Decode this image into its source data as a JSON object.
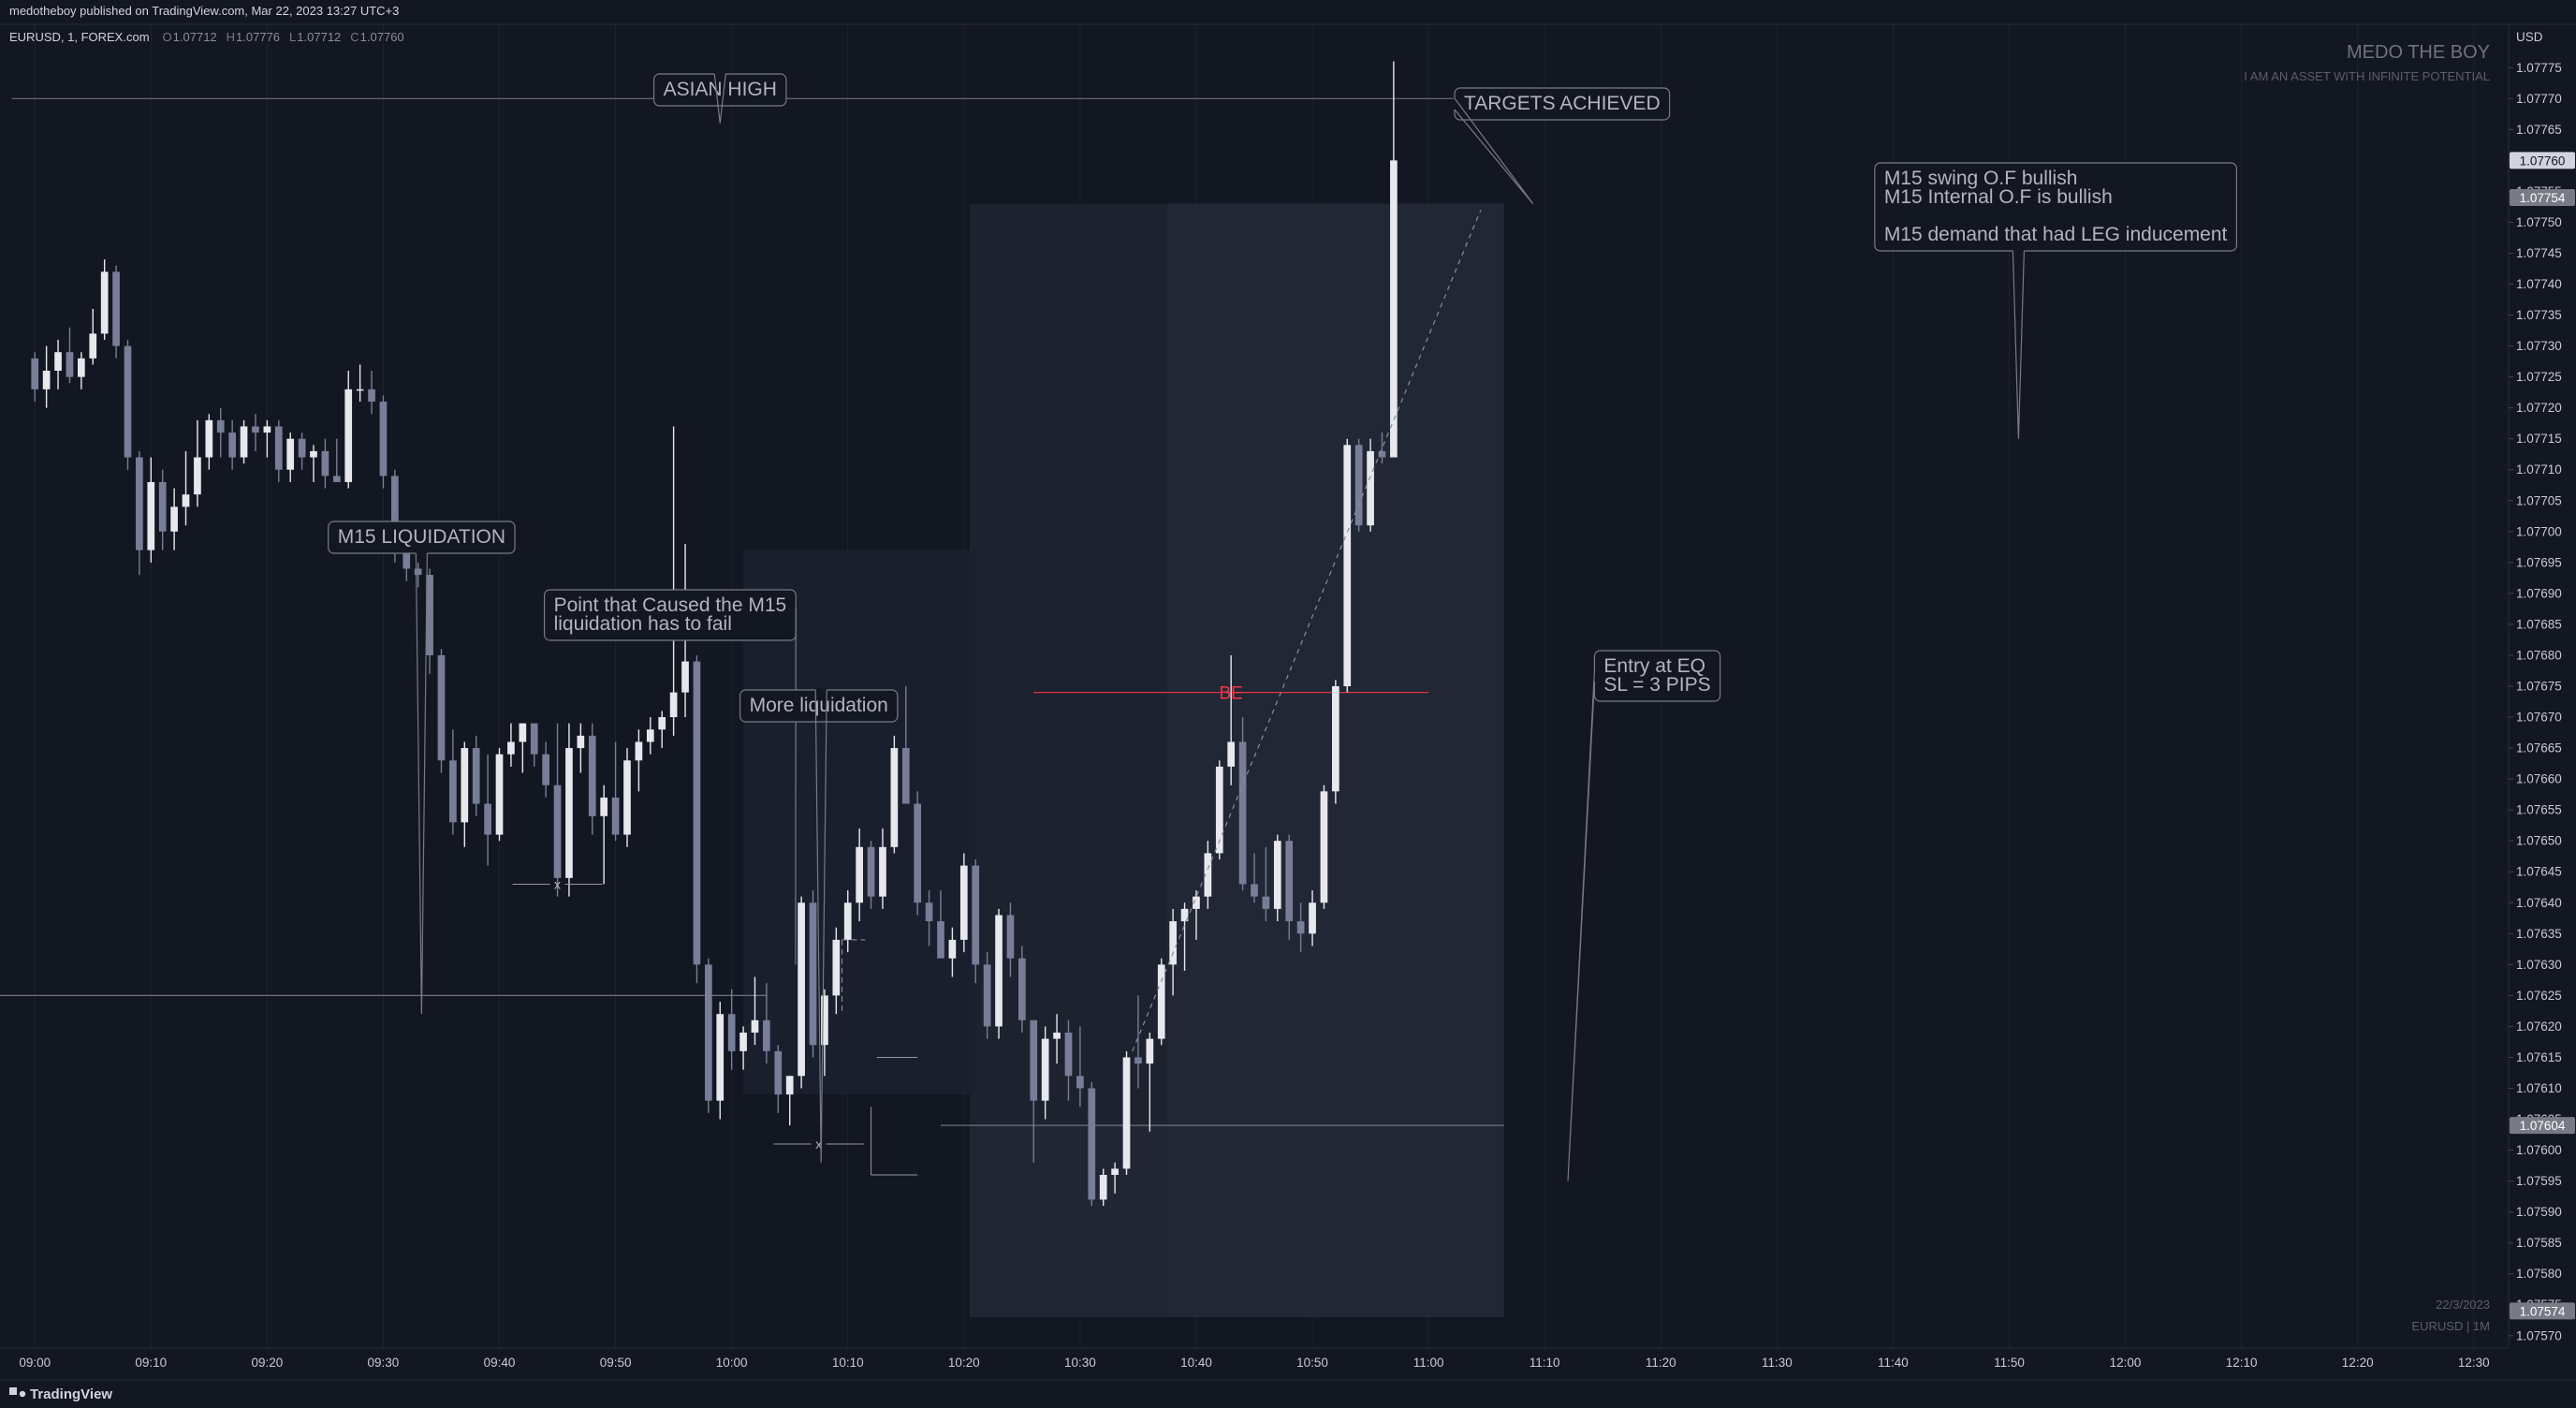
{
  "header": {
    "publisher": "medotheboy published on TradingView.com, Mar 22, 2023 13:27 UTC+3",
    "symbol": "EURUSD, 1, FOREX.com",
    "ohlc": [
      {
        "label": "O",
        "value": "1.07712"
      },
      {
        "label": "H",
        "value": "1.07776"
      },
      {
        "label": "L",
        "value": "1.07712"
      },
      {
        "label": "C",
        "value": "1.07760"
      }
    ]
  },
  "watermark": {
    "title": "MEDO THE BOY",
    "subtitle": "I AM AN ASSET WITH INFINITE POTENTIAL",
    "date": "22/3/2023",
    "symbol_tf": "EURUSD | 1M"
  },
  "footer": {
    "brand": "TradingView"
  },
  "colors": {
    "background": "#131722",
    "candle_up": "#e6e8ee",
    "candle_down": "#787e97",
    "grid": "#1f2330",
    "be_line": "#f23645",
    "annotation": "#b2b5be"
  },
  "chart_data": {
    "type": "candlestick",
    "instrument": "EURUSD",
    "timeframe": "1",
    "y_axis": {
      "unit_label": "USD",
      "range": [
        1.07568,
        1.07782
      ],
      "ticks": [
        "1.07775",
        "1.07770",
        "1.07765",
        "1.07760",
        "1.07755",
        "1.07750",
        "1.07745",
        "1.07740",
        "1.07735",
        "1.07730",
        "1.07725",
        "1.07720",
        "1.07715",
        "1.07710",
        "1.07705",
        "1.07700",
        "1.07695",
        "1.07690",
        "1.07685",
        "1.07680",
        "1.07675",
        "1.07670",
        "1.07665",
        "1.07660",
        "1.07655",
        "1.07650",
        "1.07645",
        "1.07640",
        "1.07635",
        "1.07630",
        "1.07625",
        "1.07620",
        "1.07615",
        "1.07610",
        "1.07605",
        "1.07600",
        "1.07595",
        "1.07590",
        "1.07585",
        "1.07580",
        "1.07575",
        "1.07570"
      ],
      "price_tags": [
        {
          "label": "1.07760",
          "value": 1.0776,
          "style": "last"
        },
        {
          "label": "1.07754",
          "value": 1.07754,
          "style": "box"
        },
        {
          "label": "1.07604",
          "value": 1.07604,
          "style": "box"
        },
        {
          "label": "1.07574",
          "value": 1.07574,
          "style": "box"
        }
      ]
    },
    "x_axis": {
      "start_minute": "09:00",
      "range_minutes": [
        -3,
        213
      ],
      "ticks": [
        {
          "label": "09:00",
          "minute": 0
        },
        {
          "label": "09:10",
          "minute": 10
        },
        {
          "label": "09:20",
          "minute": 20
        },
        {
          "label": "09:30",
          "minute": 30
        },
        {
          "label": "09:40",
          "minute": 40
        },
        {
          "label": "09:50",
          "minute": 50
        },
        {
          "label": "10:00",
          "minute": 60
        },
        {
          "label": "10:10",
          "minute": 70
        },
        {
          "label": "10:20",
          "minute": 80
        },
        {
          "label": "10:30",
          "minute": 90
        },
        {
          "label": "10:40",
          "minute": 100
        },
        {
          "label": "10:50",
          "minute": 110
        },
        {
          "label": "11:00",
          "minute": 120
        },
        {
          "label": "11:10",
          "minute": 130
        },
        {
          "label": "11:20",
          "minute": 140
        },
        {
          "label": "11:30",
          "minute": 150
        },
        {
          "label": "11:40",
          "minute": 160
        },
        {
          "label": "11:50",
          "minute": 170
        },
        {
          "label": "12:00",
          "minute": 180
        },
        {
          "label": "12:10",
          "minute": 190
        },
        {
          "label": "12:20",
          "minute": 200
        },
        {
          "label": "12:30",
          "minute": 210
        }
      ]
    },
    "candles": [
      [
        1.07728,
        1.07729,
        1.07721,
        1.07723
      ],
      [
        1.07723,
        1.0773,
        1.0772,
        1.07726
      ],
      [
        1.07726,
        1.07731,
        1.07723,
        1.07729
      ],
      [
        1.07729,
        1.07733,
        1.07724,
        1.07725
      ],
      [
        1.07725,
        1.07729,
        1.07723,
        1.07728
      ],
      [
        1.07728,
        1.07736,
        1.07727,
        1.07732
      ],
      [
        1.07732,
        1.07744,
        1.07731,
        1.07742
      ],
      [
        1.07742,
        1.07743,
        1.07728,
        1.0773
      ],
      [
        1.0773,
        1.07731,
        1.0771,
        1.07712
      ],
      [
        1.07712,
        1.07713,
        1.07693,
        1.07697
      ],
      [
        1.07697,
        1.07712,
        1.07695,
        1.07708
      ],
      [
        1.07708,
        1.0771,
        1.07697,
        1.077
      ],
      [
        1.077,
        1.07707,
        1.07697,
        1.07704
      ],
      [
        1.07704,
        1.07713,
        1.07701,
        1.07706
      ],
      [
        1.07706,
        1.07718,
        1.07704,
        1.07712
      ],
      [
        1.07712,
        1.07719,
        1.0771,
        1.07718
      ],
      [
        1.07718,
        1.0772,
        1.07712,
        1.07716
      ],
      [
        1.07716,
        1.07718,
        1.0771,
        1.07712
      ],
      [
        1.07712,
        1.07718,
        1.07711,
        1.07717
      ],
      [
        1.07717,
        1.07719,
        1.07713,
        1.07716
      ],
      [
        1.07716,
        1.07718,
        1.07712,
        1.07717
      ],
      [
        1.07717,
        1.07718,
        1.07708,
        1.0771
      ],
      [
        1.0771,
        1.07716,
        1.07708,
        1.07715
      ],
      [
        1.07715,
        1.07716,
        1.0771,
        1.07712
      ],
      [
        1.07712,
        1.07714,
        1.07708,
        1.07713
      ],
      [
        1.07713,
        1.07715,
        1.07707,
        1.07709
      ],
      [
        1.07709,
        1.07715,
        1.07708,
        1.07708
      ],
      [
        1.07708,
        1.07726,
        1.07707,
        1.07723
      ],
      [
        1.07723,
        1.07727,
        1.07721,
        1.07723
      ],
      [
        1.07723,
        1.07726,
        1.07719,
        1.07721
      ],
      [
        1.07721,
        1.07722,
        1.07707,
        1.07709
      ],
      [
        1.07709,
        1.0771,
        1.07695,
        1.07697
      ],
      [
        1.07697,
        1.07698,
        1.07692,
        1.07694
      ],
      [
        1.07694,
        1.07695,
        1.07691,
        1.07693
      ],
      [
        1.07693,
        1.07694,
        1.07677,
        1.0768
      ],
      [
        1.0768,
        1.07681,
        1.07661,
        1.07663
      ],
      [
        1.07663,
        1.07668,
        1.07651,
        1.07653
      ],
      [
        1.07653,
        1.07666,
        1.07649,
        1.07665
      ],
      [
        1.07665,
        1.07667,
        1.07654,
        1.07656
      ],
      [
        1.07656,
        1.07664,
        1.07646,
        1.07651
      ],
      [
        1.07651,
        1.07665,
        1.0765,
        1.07664
      ],
      [
        1.07664,
        1.07669,
        1.07662,
        1.07666
      ],
      [
        1.07666,
        1.07669,
        1.07661,
        1.07669
      ],
      [
        1.07669,
        1.07669,
        1.07662,
        1.07664
      ],
      [
        1.07664,
        1.07666,
        1.07657,
        1.07659
      ],
      [
        1.07659,
        1.07669,
        1.07641,
        1.07644
      ],
      [
        1.07644,
        1.07669,
        1.07641,
        1.07665
      ],
      [
        1.07665,
        1.07669,
        1.07661,
        1.07667
      ],
      [
        1.07667,
        1.07669,
        1.07651,
        1.07654
      ],
      [
        1.07654,
        1.07659,
        1.07643,
        1.07657
      ],
      [
        1.07657,
        1.07666,
        1.0765,
        1.07651
      ],
      [
        1.07651,
        1.07665,
        1.07649,
        1.07663
      ],
      [
        1.07663,
        1.07668,
        1.07658,
        1.07666
      ],
      [
        1.07666,
        1.0767,
        1.07664,
        1.07668
      ],
      [
        1.07668,
        1.07671,
        1.07665,
        1.0767
      ],
      [
        1.0767,
        1.07717,
        1.07667,
        1.07674
      ],
      [
        1.07674,
        1.07698,
        1.0767,
        1.07679
      ],
      [
        1.07679,
        1.0768,
        1.07627,
        1.0763
      ],
      [
        1.0763,
        1.07631,
        1.07606,
        1.07608
      ],
      [
        1.07608,
        1.07624,
        1.07605,
        1.07622
      ],
      [
        1.07622,
        1.07626,
        1.07613,
        1.07616
      ],
      [
        1.07616,
        1.0762,
        1.07613,
        1.07619
      ],
      [
        1.07619,
        1.07628,
        1.07617,
        1.07621
      ],
      [
        1.07621,
        1.07627,
        1.07614,
        1.07616
      ],
      [
        1.07616,
        1.07617,
        1.07606,
        1.07609
      ],
      [
        1.07609,
        1.07612,
        1.07604,
        1.07612
      ],
      [
        1.07612,
        1.07641,
        1.0761,
        1.0764
      ],
      [
        1.0764,
        1.07642,
        1.07615,
        1.07617
      ],
      [
        1.07617,
        1.07626,
        1.07612,
        1.07625
      ],
      [
        1.07625,
        1.07636,
        1.07622,
        1.07634
      ],
      [
        1.07634,
        1.07642,
        1.07632,
        1.0764
      ],
      [
        1.0764,
        1.07652,
        1.07637,
        1.07649
      ],
      [
        1.07649,
        1.0765,
        1.07639,
        1.07641
      ],
      [
        1.07641,
        1.07652,
        1.07639,
        1.07649
      ],
      [
        1.07649,
        1.07667,
        1.07648,
        1.07665
      ],
      [
        1.07665,
        1.07675,
        1.07656,
        1.07656
      ],
      [
        1.07656,
        1.07658,
        1.07638,
        1.0764
      ],
      [
        1.0764,
        1.07642,
        1.07633,
        1.07637
      ],
      [
        1.07637,
        1.07642,
        1.07631,
        1.07631
      ],
      [
        1.07631,
        1.07636,
        1.07628,
        1.07634
      ],
      [
        1.07634,
        1.07648,
        1.07632,
        1.07646
      ],
      [
        1.07646,
        1.07647,
        1.07627,
        1.0763
      ],
      [
        1.0763,
        1.07632,
        1.07618,
        1.0762
      ],
      [
        1.0762,
        1.07639,
        1.07618,
        1.07638
      ],
      [
        1.07638,
        1.0764,
        1.07628,
        1.07631
      ],
      [
        1.07631,
        1.07633,
        1.07619,
        1.07621
      ],
      [
        1.07621,
        1.07621,
        1.07598,
        1.07608
      ],
      [
        1.07608,
        1.0762,
        1.07605,
        1.07618
      ],
      [
        1.07618,
        1.07622,
        1.07614,
        1.07619
      ],
      [
        1.07619,
        1.07621,
        1.07608,
        1.07612
      ],
      [
        1.07612,
        1.0762,
        1.07607,
        1.0761
      ],
      [
        1.0761,
        1.07611,
        1.07591,
        1.07592
      ],
      [
        1.07592,
        1.07597,
        1.07591,
        1.07596
      ],
      [
        1.07596,
        1.07598,
        1.07593,
        1.07597
      ],
      [
        1.07597,
        1.07616,
        1.07596,
        1.07615
      ],
      [
        1.07615,
        1.07625,
        1.0761,
        1.07614
      ],
      [
        1.07614,
        1.07619,
        1.07603,
        1.07618
      ],
      [
        1.07618,
        1.07631,
        1.07617,
        1.0763
      ],
      [
        1.0763,
        1.07639,
        1.07625,
        1.07637
      ],
      [
        1.07637,
        1.0764,
        1.07629,
        1.07639
      ],
      [
        1.07639,
        1.07642,
        1.07634,
        1.07641
      ],
      [
        1.07641,
        1.0765,
        1.07639,
        1.07648
      ],
      [
        1.07648,
        1.07663,
        1.07647,
        1.07662
      ],
      [
        1.07662,
        1.0768,
        1.07659,
        1.07666
      ],
      [
        1.07666,
        1.0767,
        1.07642,
        1.07643
      ],
      [
        1.07643,
        1.07648,
        1.0764,
        1.07641
      ],
      [
        1.07641,
        1.07649,
        1.07637,
        1.07639
      ],
      [
        1.07639,
        1.07651,
        1.07637,
        1.0765
      ],
      [
        1.0765,
        1.07651,
        1.07634,
        1.07637
      ],
      [
        1.07637,
        1.0764,
        1.07632,
        1.07635
      ],
      [
        1.07635,
        1.07642,
        1.07633,
        1.0764
      ],
      [
        1.0764,
        1.07659,
        1.07639,
        1.07658
      ],
      [
        1.07658,
        1.07676,
        1.07656,
        1.07675
      ],
      [
        1.07675,
        1.07715,
        1.07674,
        1.07714
      ],
      [
        1.07714,
        1.07715,
        1.077,
        1.07701
      ],
      [
        1.07701,
        1.07715,
        1.077,
        1.07713
      ],
      [
        1.07713,
        1.07716,
        1.07711,
        1.07712
      ],
      [
        1.07712,
        1.07776,
        1.07712,
        1.0776
      ]
    ],
    "zones": [
      {
        "x": [
          80.5,
          126.5
        ],
        "y": [
          1.07573,
          1.07753
        ],
        "color": "#1f2431",
        "opacity": 0.9
      },
      {
        "x": [
          97.5,
          126.5
        ],
        "y": [
          1.07573,
          1.07753
        ],
        "color": "#242936",
        "opacity": 0.7
      },
      {
        "x": [
          61,
          81
        ],
        "y": [
          1.07609,
          1.07697
        ],
        "color": "#1c2030",
        "opacity": 0.9
      },
      {
        "x": [
          80.5,
          126.5
        ],
        "y": [
          1.07573,
          1.07604
        ],
        "color": "#232836",
        "opacity": 0.8
      }
    ],
    "levels": [
      {
        "name": "asian-high",
        "price": 1.0777,
        "x": [
          -2,
          125
        ]
      },
      {
        "name": "m15-liquidation-level",
        "price": 1.07625,
        "x": [
          -3,
          63
        ]
      },
      {
        "name": "entry-eq-level",
        "price": 1.07604,
        "x": [
          78,
          126.5
        ]
      },
      {
        "name": "be-level",
        "price": 1.07674,
        "x": [
          86,
          120
        ]
      }
    ],
    "annotations": [
      {
        "id": "asian-high-label",
        "lines": [
          "ASIAN HIGH"
        ],
        "anchor": [
          59,
          96
        ],
        "pointer": [
          59,
          1.07766
        ],
        "pointer_dir": "up"
      },
      {
        "id": "targets-achieved-label",
        "lines": [
          "TARGETS ACHIEVED"
        ],
        "anchor": [
          131.5,
          111
        ],
        "pointer": [
          129,
          1.07753
        ],
        "pointer_dir": "left"
      },
      {
        "id": "m15-of-note",
        "lines": [
          "M15 swing O.F bullish",
          "M15 Internal O.F  is bullish",
          "",
          "M15 demand that had LEG inducement"
        ],
        "anchor": [
          174,
          221
        ],
        "pointer": [
          170.8,
          1.07715
        ],
        "pointer_dir": "down"
      },
      {
        "id": "m15-liquidation-label",
        "lines": [
          "M15 LIQUIDATION"
        ],
        "anchor": [
          33.3,
          574
        ],
        "pointer": [
          33.3,
          1.07622
        ],
        "pointer_dir": "down"
      },
      {
        "id": "failed-point-note",
        "lines": [
          "Point that Caused the M15",
          "liquidation has to fail"
        ],
        "anchor": [
          54.7,
          657
        ],
        "pointer": [
          65.5,
          1.0763
        ],
        "pointer_dir": "right"
      },
      {
        "id": "more-liquidation-label",
        "lines": [
          "More liquidation"
        ],
        "anchor": [
          67.5,
          754
        ],
        "pointer": [
          67.7,
          1.07598
        ],
        "pointer_dir": "up"
      },
      {
        "id": "entry-eq-note",
        "lines": [
          "Entry at EQ",
          "SL = 3 PIPS"
        ],
        "anchor": [
          139.7,
          722
        ],
        "pointer": [
          132,
          1.07595
        ],
        "pointer_dir": "left"
      }
    ],
    "be_label": "BE",
    "x_markers": [
      {
        "minute": 45,
        "price": 1.07643,
        "label": "x"
      },
      {
        "minute": 67.5,
        "price": 1.07601,
        "label": "x"
      }
    ]
  }
}
